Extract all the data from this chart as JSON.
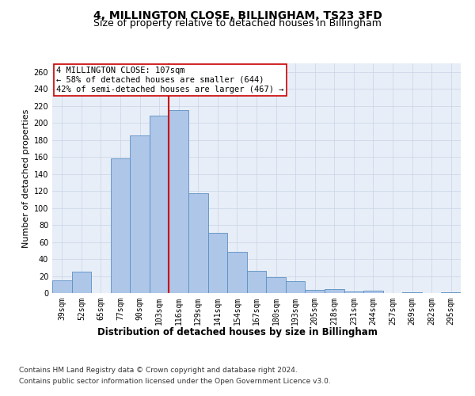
{
  "title": "4, MILLINGTON CLOSE, BILLINGHAM, TS23 3FD",
  "subtitle": "Size of property relative to detached houses in Billingham",
  "xlabel": "Distribution of detached houses by size in Billingham",
  "ylabel": "Number of detached properties",
  "categories": [
    "39sqm",
    "52sqm",
    "65sqm",
    "77sqm",
    "90sqm",
    "103sqm",
    "116sqm",
    "129sqm",
    "141sqm",
    "154sqm",
    "167sqm",
    "180sqm",
    "193sqm",
    "205sqm",
    "218sqm",
    "231sqm",
    "244sqm",
    "257sqm",
    "269sqm",
    "282sqm",
    "295sqm"
  ],
  "bar_heights": [
    15,
    25,
    0,
    158,
    185,
    209,
    215,
    117,
    71,
    48,
    26,
    19,
    14,
    4,
    5,
    2,
    3,
    0,
    1,
    0,
    1
  ],
  "bar_color": "#aec6e8",
  "bar_edge_color": "#5a8fc2",
  "vline_x": 5.5,
  "vline_color": "#cc0000",
  "annotation_text": "4 MILLINGTON CLOSE: 107sqm\n← 58% of detached houses are smaller (644)\n42% of semi-detached houses are larger (467) →",
  "annotation_box_color": "#ffffff",
  "annotation_box_edge": "#cc0000",
  "ylim": [
    0,
    270
  ],
  "yticks": [
    0,
    20,
    40,
    60,
    80,
    100,
    120,
    140,
    160,
    180,
    200,
    220,
    240,
    260
  ],
  "grid_color": "#c8d4e8",
  "background_color": "#e8eef7",
  "footer_line1": "Contains HM Land Registry data © Crown copyright and database right 2024.",
  "footer_line2": "Contains public sector information licensed under the Open Government Licence v3.0.",
  "title_fontsize": 10,
  "subtitle_fontsize": 9,
  "xlabel_fontsize": 8.5,
  "ylabel_fontsize": 8,
  "tick_fontsize": 7,
  "annotation_fontsize": 7.5,
  "footer_fontsize": 6.5
}
